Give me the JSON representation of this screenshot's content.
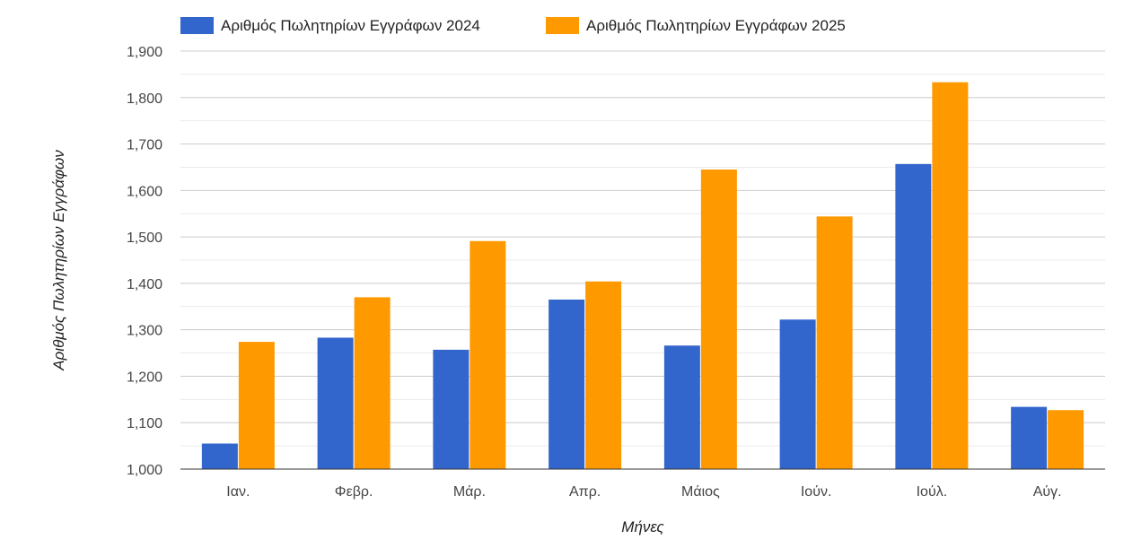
{
  "chart_data": {
    "type": "bar",
    "categories": [
      "Ιαν.",
      "Φεβρ.",
      "Μάρ.",
      "Απρ.",
      "Μάιος",
      "Ιούν.",
      "Ιούλ.",
      "Αύγ."
    ],
    "series": [
      {
        "name": "Αριθμός Πωλητηρίων Εγγράφων 2024",
        "color": "#3366cc",
        "values": [
          1055,
          1283,
          1257,
          1365,
          1266,
          1322,
          1657,
          1134
        ]
      },
      {
        "name": "Αριθμός Πωλητηρίων Εγγράφων 2025",
        "color": "#ff9900",
        "values": [
          1274,
          1370,
          1491,
          1404,
          1645,
          1544,
          1833,
          1127
        ]
      }
    ],
    "xlabel": "Μήνες",
    "ylabel": "Αριθμός Πωλητηρίων Εγγράφων",
    "ylim": [
      1000,
      1900
    ],
    "yticks": [
      "1,000",
      "1,100",
      "1,200",
      "1,300",
      "1,400",
      "1,500",
      "1,600",
      "1,700",
      "1,800",
      "1,900"
    ],
    "grid": true,
    "minor_grid": true,
    "legend": "top-left"
  }
}
